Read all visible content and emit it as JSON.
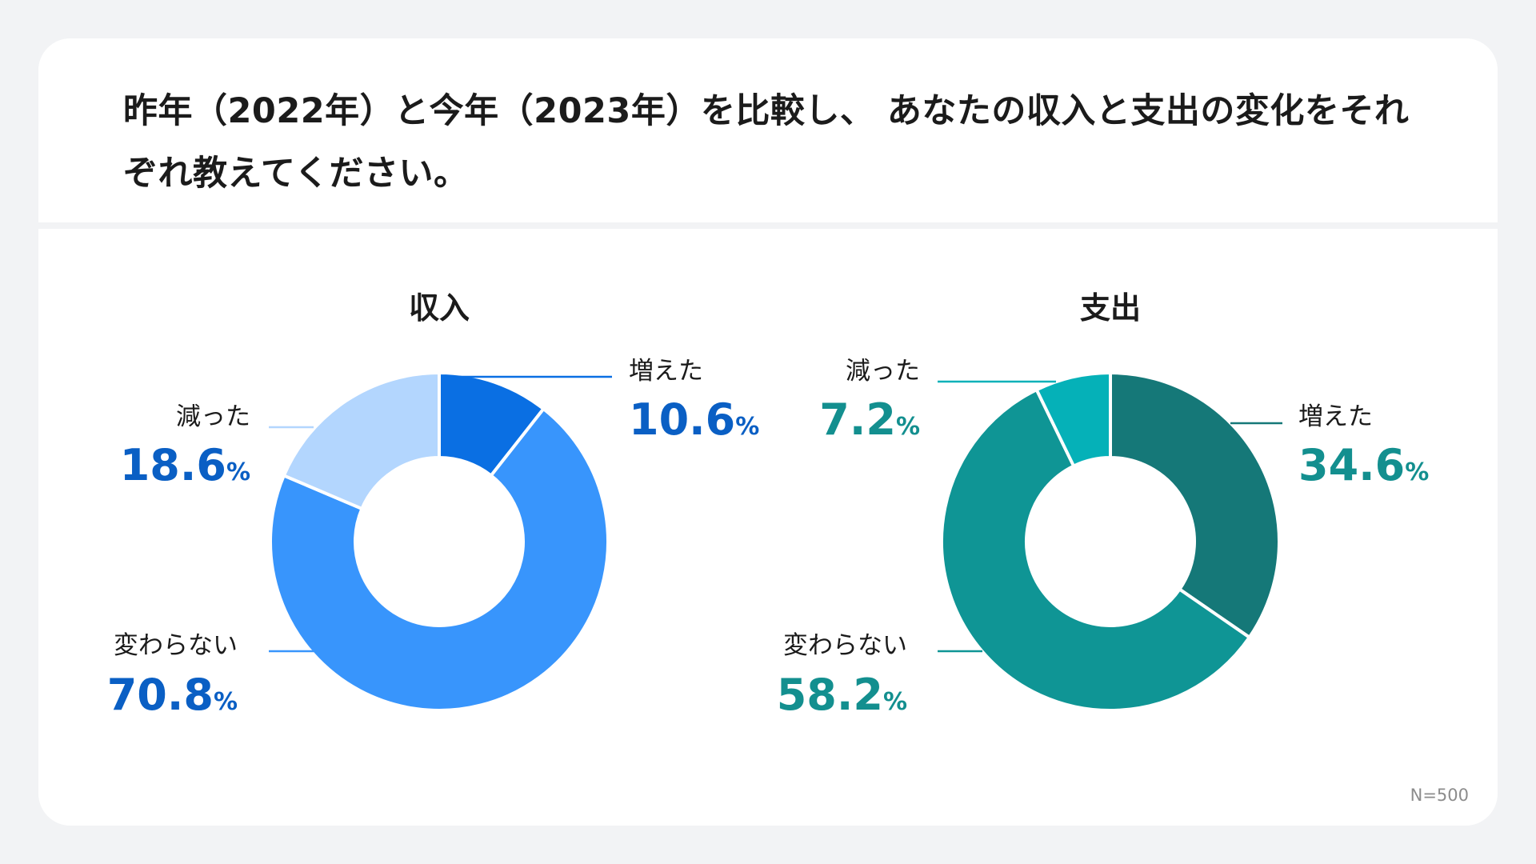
{
  "title": "昨年（2022年）と今年（2023年）を比較し、 あなたの収入と支出の変化をそれぞれ教えてください。",
  "sample_size": "N=500",
  "percent_symbol": "%",
  "chart_data": [
    {
      "type": "pie",
      "title": "収入",
      "accent_color": "#0a5fc4",
      "categories": [
        "増えた",
        "変わらない",
        "減った"
      ],
      "values": [
        10.6,
        70.8,
        18.6
      ],
      "value_labels": [
        "10.6",
        "70.8",
        "18.6"
      ],
      "colors": [
        "#0a6fe3",
        "#3895fc",
        "#b3d6fe"
      ],
      "unit": "%"
    },
    {
      "type": "pie",
      "title": "支出",
      "accent_color": "#138f8f",
      "categories": [
        "増えた",
        "変わらない",
        "減った"
      ],
      "values": [
        34.6,
        58.2,
        7.2
      ],
      "value_labels": [
        "34.6",
        "58.2",
        "7.2"
      ],
      "colors": [
        "#157878",
        "#0f9595",
        "#05b1b8"
      ],
      "unit": "%"
    }
  ]
}
